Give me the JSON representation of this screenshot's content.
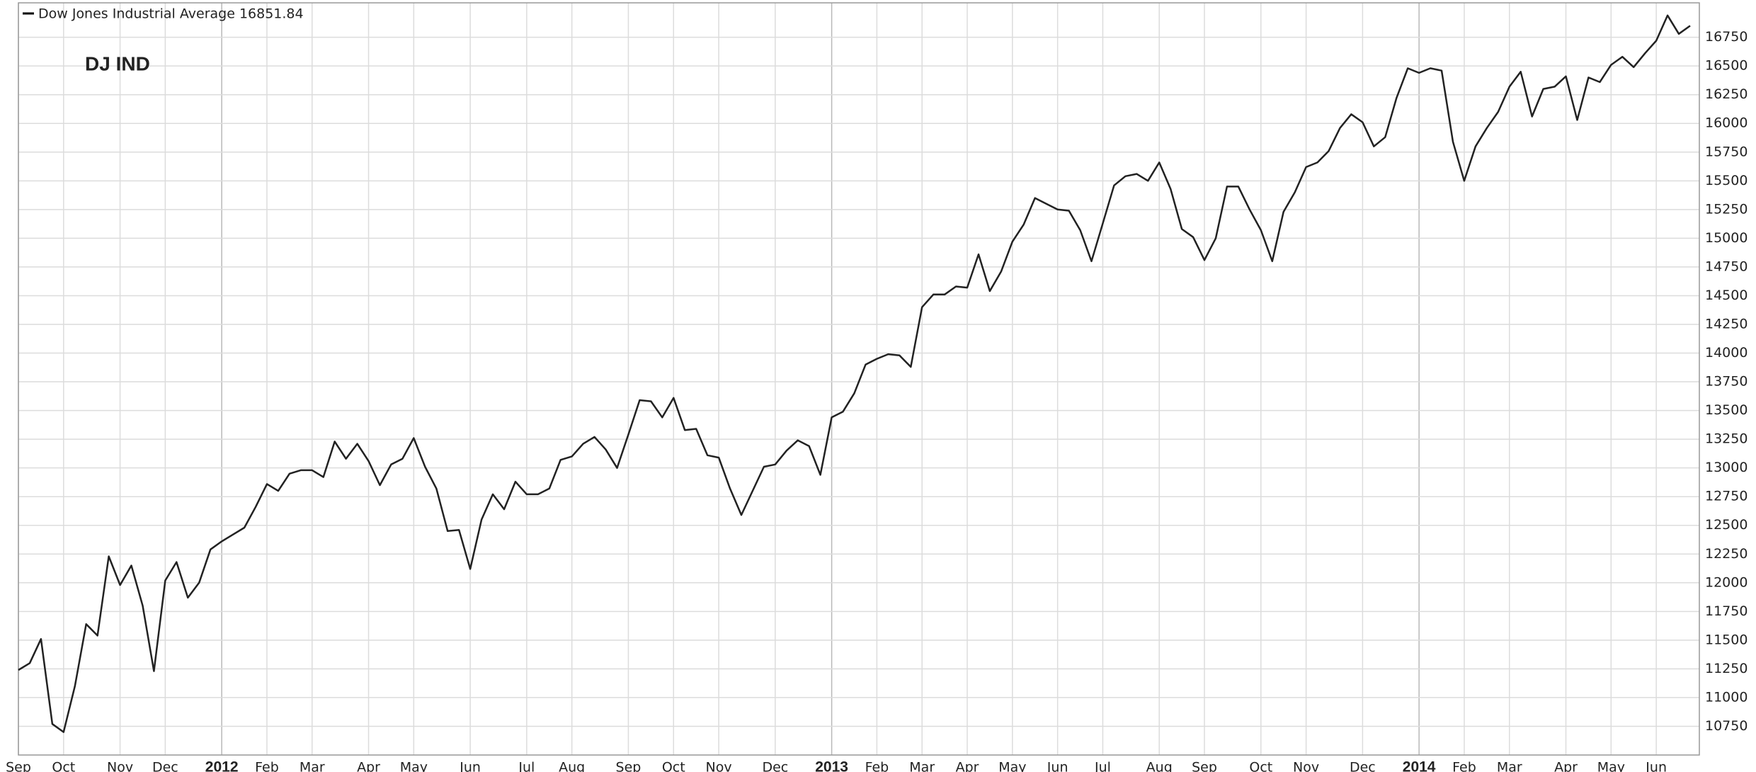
{
  "chart_data": {
    "type": "line",
    "title": "DJ IND",
    "categories": [
      "Sep",
      null,
      null,
      null,
      "Oct",
      null,
      null,
      null,
      null,
      "Nov",
      null,
      null,
      null,
      "Dec",
      null,
      null,
      null,
      null,
      "2012",
      null,
      null,
      null,
      "Feb",
      null,
      null,
      null,
      "Mar",
      null,
      null,
      null,
      null,
      "Apr",
      null,
      null,
      null,
      "May",
      null,
      null,
      null,
      null,
      "Jun",
      null,
      null,
      null,
      null,
      "Jul",
      null,
      null,
      null,
      "Aug",
      null,
      null,
      null,
      null,
      "Sep",
      null,
      null,
      null,
      "Oct",
      null,
      null,
      null,
      "Nov",
      null,
      null,
      null,
      null,
      "Dec",
      null,
      null,
      null,
      null,
      "2013",
      null,
      null,
      null,
      "Feb",
      null,
      null,
      null,
      "Mar",
      null,
      null,
      null,
      "Apr",
      null,
      null,
      null,
      "May",
      null,
      null,
      null,
      "Jun",
      null,
      null,
      null,
      "Jul",
      null,
      null,
      null,
      null,
      "Aug",
      null,
      null,
      null,
      "Sep",
      null,
      null,
      null,
      null,
      "Oct",
      null,
      null,
      null,
      "Nov",
      null,
      null,
      null,
      null,
      "Dec",
      null,
      null,
      null,
      null,
      "2014",
      null,
      null,
      null,
      "Feb",
      null,
      null,
      null,
      "Mar",
      null,
      null,
      null,
      null,
      "Apr",
      null,
      null,
      null,
      "May",
      null,
      null,
      null,
      "Jun",
      null,
      null,
      null
    ],
    "series": [
      {
        "name": "Dow Jones Industrial Average 16851.84",
        "color": "#222222",
        "values": [
          11240,
          11300,
          11510,
          10770,
          10700,
          11100,
          11640,
          11540,
          12230,
          11980,
          12150,
          11800,
          11230,
          12020,
          12180,
          11870,
          12000,
          12290,
          12360,
          12420,
          12480,
          12660,
          12860,
          12800,
          12950,
          12980,
          12980,
          12920,
          13230,
          13080,
          13210,
          13060,
          12850,
          13030,
          13080,
          13260,
          13010,
          12820,
          12450,
          12460,
          12120,
          12550,
          12770,
          12640,
          12880,
          12770,
          12770,
          12820,
          13070,
          13100,
          13210,
          13270,
          13160,
          13000,
          13290,
          13590,
          13580,
          13440,
          13610,
          13330,
          13340,
          13110,
          13090,
          12820,
          12590,
          12800,
          13010,
          13030,
          13150,
          13240,
          13190,
          12940,
          13440,
          13490,
          13650,
          13900,
          13950,
          13990,
          13980,
          13880,
          14400,
          14510,
          14510,
          14580,
          14570,
          14860,
          14540,
          14710,
          14970,
          15120,
          15350,
          15300,
          15250,
          15240,
          15070,
          14800,
          15130,
          15460,
          15540,
          15560,
          15500,
          15660,
          15430,
          15080,
          15010,
          14810,
          15000,
          15450,
          15450,
          15250,
          15070,
          14800,
          15230,
          15400,
          15620,
          15660,
          15760,
          15960,
          16080,
          16010,
          15800,
          15880,
          16220,
          16480,
          16440,
          16480,
          16460,
          15840,
          15500,
          15800,
          15960,
          16100,
          16320,
          16450,
          16060,
          16300,
          16320,
          16410,
          16030,
          16400,
          16360,
          16510,
          16580,
          16490,
          16610,
          16720,
          16940,
          16780,
          16850
        ]
      }
    ],
    "ylim": [
      10500,
      17050
    ],
    "yticks": [
      10750,
      11000,
      11250,
      11500,
      11750,
      12000,
      12250,
      12500,
      12750,
      13000,
      13250,
      13500,
      13750,
      14000,
      14250,
      14500,
      14750,
      15000,
      15250,
      15500,
      15750,
      16000,
      16250,
      16500,
      16750
    ],
    "grid": true
  }
}
